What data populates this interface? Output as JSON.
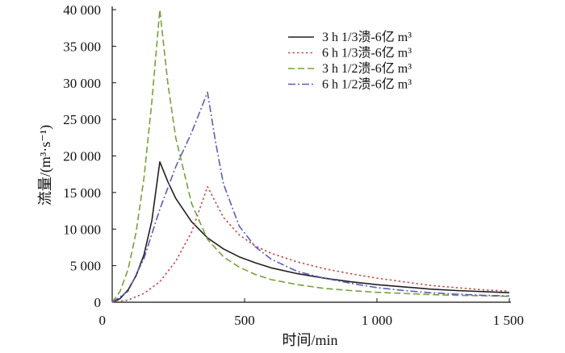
{
  "chart_data": {
    "type": "line",
    "xlabel": "时间/min",
    "ylabel": "流量/(m³·s⁻¹)",
    "xlim": [
      0,
      1500
    ],
    "ylim": [
      0,
      40000
    ],
    "xticks": [
      0,
      500,
      1000,
      1500
    ],
    "xtick_labels": [
      "0",
      "500",
      "1 000",
      "1 500"
    ],
    "yticks": [
      0,
      5000,
      10000,
      15000,
      20000,
      25000,
      30000,
      35000,
      40000
    ],
    "ytick_labels": [
      "0",
      "5 000",
      "10 000",
      "15 000",
      "20 000",
      "25 000",
      "30 000",
      "35 000",
      "40 000"
    ],
    "grid": false,
    "legend_position": "top-right",
    "series": [
      {
        "name": "3 h 1/3溃-6亿  m³",
        "color": "#231f20",
        "dash": "solid",
        "x": [
          0,
          30,
          60,
          90,
          120,
          150,
          180,
          210,
          240,
          300,
          360,
          420,
          480,
          540,
          600,
          700,
          800,
          900,
          1000,
          1100,
          1200,
          1300,
          1400,
          1500
        ],
        "y": [
          0,
          500,
          1700,
          3600,
          6500,
          11200,
          19200,
          16500,
          14200,
          11000,
          8800,
          7300,
          6200,
          5400,
          4700,
          3900,
          3300,
          2800,
          2400,
          2100,
          1800,
          1600,
          1450,
          1300
        ]
      },
      {
        "name": "6 h 1/3溃-6亿  m³",
        "color": "#c0504d",
        "dash": "dotted",
        "x": [
          0,
          60,
          120,
          180,
          240,
          300,
          360,
          420,
          480,
          540,
          600,
          700,
          800,
          900,
          1000,
          1100,
          1200,
          1300,
          1400,
          1500
        ],
        "y": [
          0,
          300,
          1200,
          2800,
          5600,
          9600,
          15800,
          11600,
          9200,
          7700,
          6700,
          5500,
          4600,
          3900,
          3300,
          2800,
          2300,
          2000,
          1700,
          1500
        ]
      },
      {
        "name": "3 h 1/2溃-6亿  m³",
        "color": "#77a03c",
        "dash": "dashed",
        "x": [
          0,
          30,
          60,
          90,
          120,
          150,
          180,
          210,
          240,
          300,
          360,
          420,
          480,
          540,
          600,
          700,
          800,
          900,
          1000,
          1100,
          1200,
          1300,
          1400,
          1500
        ],
        "y": [
          0,
          1500,
          4500,
          9500,
          17000,
          27500,
          40000,
          30000,
          22500,
          13500,
          8600,
          6200,
          4800,
          3800,
          3100,
          2400,
          1900,
          1600,
          1350,
          1200,
          1050,
          950,
          880,
          800
        ]
      },
      {
        "name": "6 h 1/2溃-6亿  m³",
        "color": "#5b5eb7",
        "dash": "dashdot",
        "x": [
          0,
          60,
          120,
          180,
          240,
          300,
          360,
          390,
          420,
          480,
          540,
          600,
          700,
          800,
          900,
          1000,
          1100,
          1200,
          1300,
          1400,
          1500
        ],
        "y": [
          0,
          1500,
          6000,
          12700,
          18500,
          23200,
          28700,
          22000,
          16200,
          10400,
          7600,
          5900,
          4200,
          3300,
          2600,
          2000,
          1600,
          1300,
          1100,
          950,
          850
        ]
      }
    ]
  }
}
